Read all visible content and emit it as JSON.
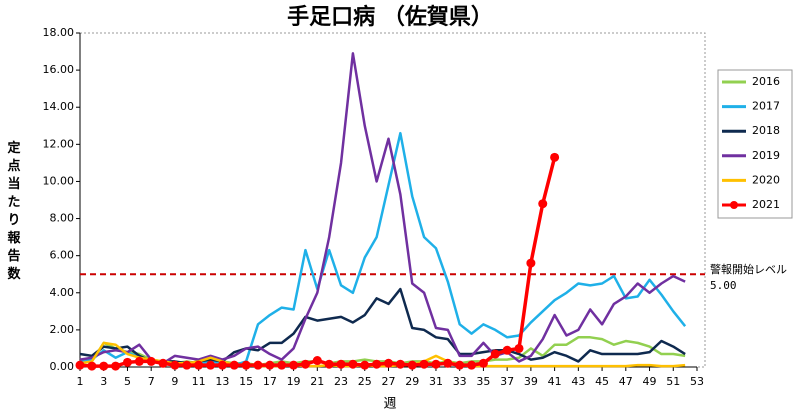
{
  "chart_data": {
    "type": "line",
    "title": "手足口病 （佐賀県）",
    "x_label": "週",
    "y_label": "定点当たり報告数",
    "x": [
      1,
      2,
      3,
      4,
      5,
      6,
      7,
      8,
      9,
      10,
      11,
      12,
      13,
      14,
      15,
      16,
      17,
      18,
      19,
      20,
      21,
      22,
      23,
      24,
      25,
      26,
      27,
      28,
      29,
      30,
      31,
      32,
      33,
      34,
      35,
      36,
      37,
      38,
      39,
      40,
      41,
      42,
      43,
      44,
      45,
      46,
      47,
      48,
      49,
      50,
      51,
      52
    ],
    "xlim": [
      1,
      53
    ],
    "xticks": [
      1,
      3,
      5,
      7,
      9,
      11,
      13,
      15,
      17,
      19,
      21,
      23,
      25,
      27,
      29,
      31,
      33,
      35,
      37,
      39,
      41,
      43,
      45,
      47,
      49,
      51,
      53
    ],
    "ylim": [
      0,
      18
    ],
    "yticks": [
      {
        "value": 0,
        "label": "0.00"
      },
      {
        "value": 2,
        "label": "2.00"
      },
      {
        "value": 4,
        "label": "4.00"
      },
      {
        "value": 6,
        "label": "6.00"
      },
      {
        "value": 8,
        "label": "8.00"
      },
      {
        "value": 10,
        "label": "10.00"
      },
      {
        "value": 12,
        "label": "12.00"
      },
      {
        "value": 14,
        "label": "14.00"
      },
      {
        "value": 16,
        "label": "16.00"
      },
      {
        "value": 18,
        "label": "18.00"
      }
    ],
    "threshold": {
      "value": 5,
      "label": "5.00",
      "text": "警報開始レベル",
      "color": "#cc0000"
    },
    "legend": "right",
    "series": [
      {
        "name": "2016",
        "color": "#92d050",
        "values": [
          0.2,
          0.3,
          1.3,
          1.0,
          0.8,
          0.7,
          0.4,
          0.3,
          0.2,
          0.3,
          0.2,
          0.4,
          0.3,
          0.2,
          0.2,
          0.1,
          0.2,
          0.3,
          0.2,
          0.3,
          0.3,
          0.2,
          0.3,
          0.3,
          0.4,
          0.3,
          0.3,
          0.2,
          0.3,
          0.3,
          0.2,
          0.3,
          0.2,
          0.3,
          0.3,
          0.4,
          0.4,
          0.5,
          1.0,
          0.6,
          1.2,
          1.2,
          1.6,
          1.6,
          1.5,
          1.2,
          1.4,
          1.3,
          1.1,
          0.7,
          0.7,
          0.6
        ]
      },
      {
        "name": "2017",
        "color": "#1fb0e8",
        "values": [
          0.3,
          0.4,
          0.9,
          0.5,
          0.8,
          0.5,
          0.3,
          0.2,
          0.2,
          0.2,
          0.2,
          0.3,
          0.2,
          0.1,
          0.3,
          2.3,
          2.8,
          3.2,
          3.1,
          6.3,
          4.2,
          6.3,
          4.4,
          4.0,
          5.9,
          7.0,
          9.8,
          12.6,
          9.2,
          7.0,
          6.4,
          4.6,
          2.3,
          1.8,
          2.3,
          2.0,
          1.6,
          1.7,
          2.4,
          3.0,
          3.6,
          4.0,
          4.5,
          4.4,
          4.5,
          4.9,
          3.7,
          3.8,
          4.7,
          3.9,
          3.0,
          2.2
        ]
      },
      {
        "name": "2018",
        "color": "#0f2a4f",
        "values": [
          0.7,
          0.6,
          1.1,
          1.0,
          1.1,
          0.6,
          0.3,
          0.3,
          0.3,
          0.2,
          0.3,
          0.4,
          0.3,
          0.8,
          1.0,
          0.9,
          1.3,
          1.3,
          1.8,
          2.7,
          2.5,
          2.6,
          2.7,
          2.4,
          2.8,
          3.7,
          3.4,
          4.2,
          2.1,
          2.0,
          1.6,
          1.5,
          0.7,
          0.7,
          0.8,
          0.9,
          0.9,
          0.7,
          0.4,
          0.5,
          0.8,
          0.6,
          0.3,
          0.9,
          0.7,
          0.7,
          0.7,
          0.7,
          0.8,
          1.4,
          1.1,
          0.7
        ]
      },
      {
        "name": "2019",
        "color": "#7030a0",
        "values": [
          0.4,
          0.5,
          0.8,
          0.9,
          0.8,
          1.2,
          0.4,
          0.2,
          0.6,
          0.5,
          0.4,
          0.6,
          0.4,
          0.6,
          1.0,
          1.1,
          0.7,
          0.4,
          1.0,
          2.6,
          4.0,
          7.0,
          11.0,
          16.9,
          13.0,
          10.0,
          12.3,
          9.3,
          4.5,
          4.0,
          2.1,
          2.0,
          0.6,
          0.6,
          1.3,
          0.6,
          0.8,
          0.3,
          0.6,
          1.5,
          2.8,
          1.7,
          2.0,
          3.1,
          2.3,
          3.4,
          3.8,
          4.5,
          4.0,
          4.5,
          4.9,
          4.6
        ]
      },
      {
        "name": "2020",
        "color": "#ffc000",
        "values": [
          0.2,
          0.3,
          1.3,
          1.2,
          0.7,
          0.5,
          0.4,
          0.3,
          0.2,
          0.2,
          0.3,
          0.5,
          0.3,
          0.1,
          0.1,
          0.05,
          0.05,
          0.05,
          0.1,
          0.05,
          0.05,
          0.1,
          0.05,
          0.05,
          0.1,
          0.05,
          0.05,
          0.1,
          0.1,
          0.3,
          0.6,
          0.3,
          0.1,
          0.05,
          0.05,
          0.05,
          0.05,
          0.05,
          0.05,
          0.05,
          0.05,
          0.05,
          0.05,
          0.05,
          0.05,
          0.05,
          0.05,
          0.1,
          0.1,
          0.05,
          0.05,
          0.1
        ]
      },
      {
        "name": "2021",
        "color": "#ff0000",
        "marker": true,
        "values": [
          0.1,
          0.05,
          0.05,
          0.05,
          0.25,
          0.3,
          0.3,
          0.2,
          0.1,
          0.1,
          0.1,
          0.1,
          0.1,
          0.1,
          0.1,
          0.1,
          0.1,
          0.1,
          0.1,
          0.15,
          0.35,
          0.15,
          0.15,
          0.15,
          0.1,
          0.15,
          0.2,
          0.15,
          0.1,
          0.15,
          0.15,
          0.2,
          0.1,
          0.1,
          0.2,
          0.7,
          0.9,
          1.0,
          5.6,
          8.8,
          11.3,
          null,
          null,
          null,
          null,
          null,
          null,
          null,
          null,
          null,
          null,
          null
        ]
      }
    ]
  }
}
